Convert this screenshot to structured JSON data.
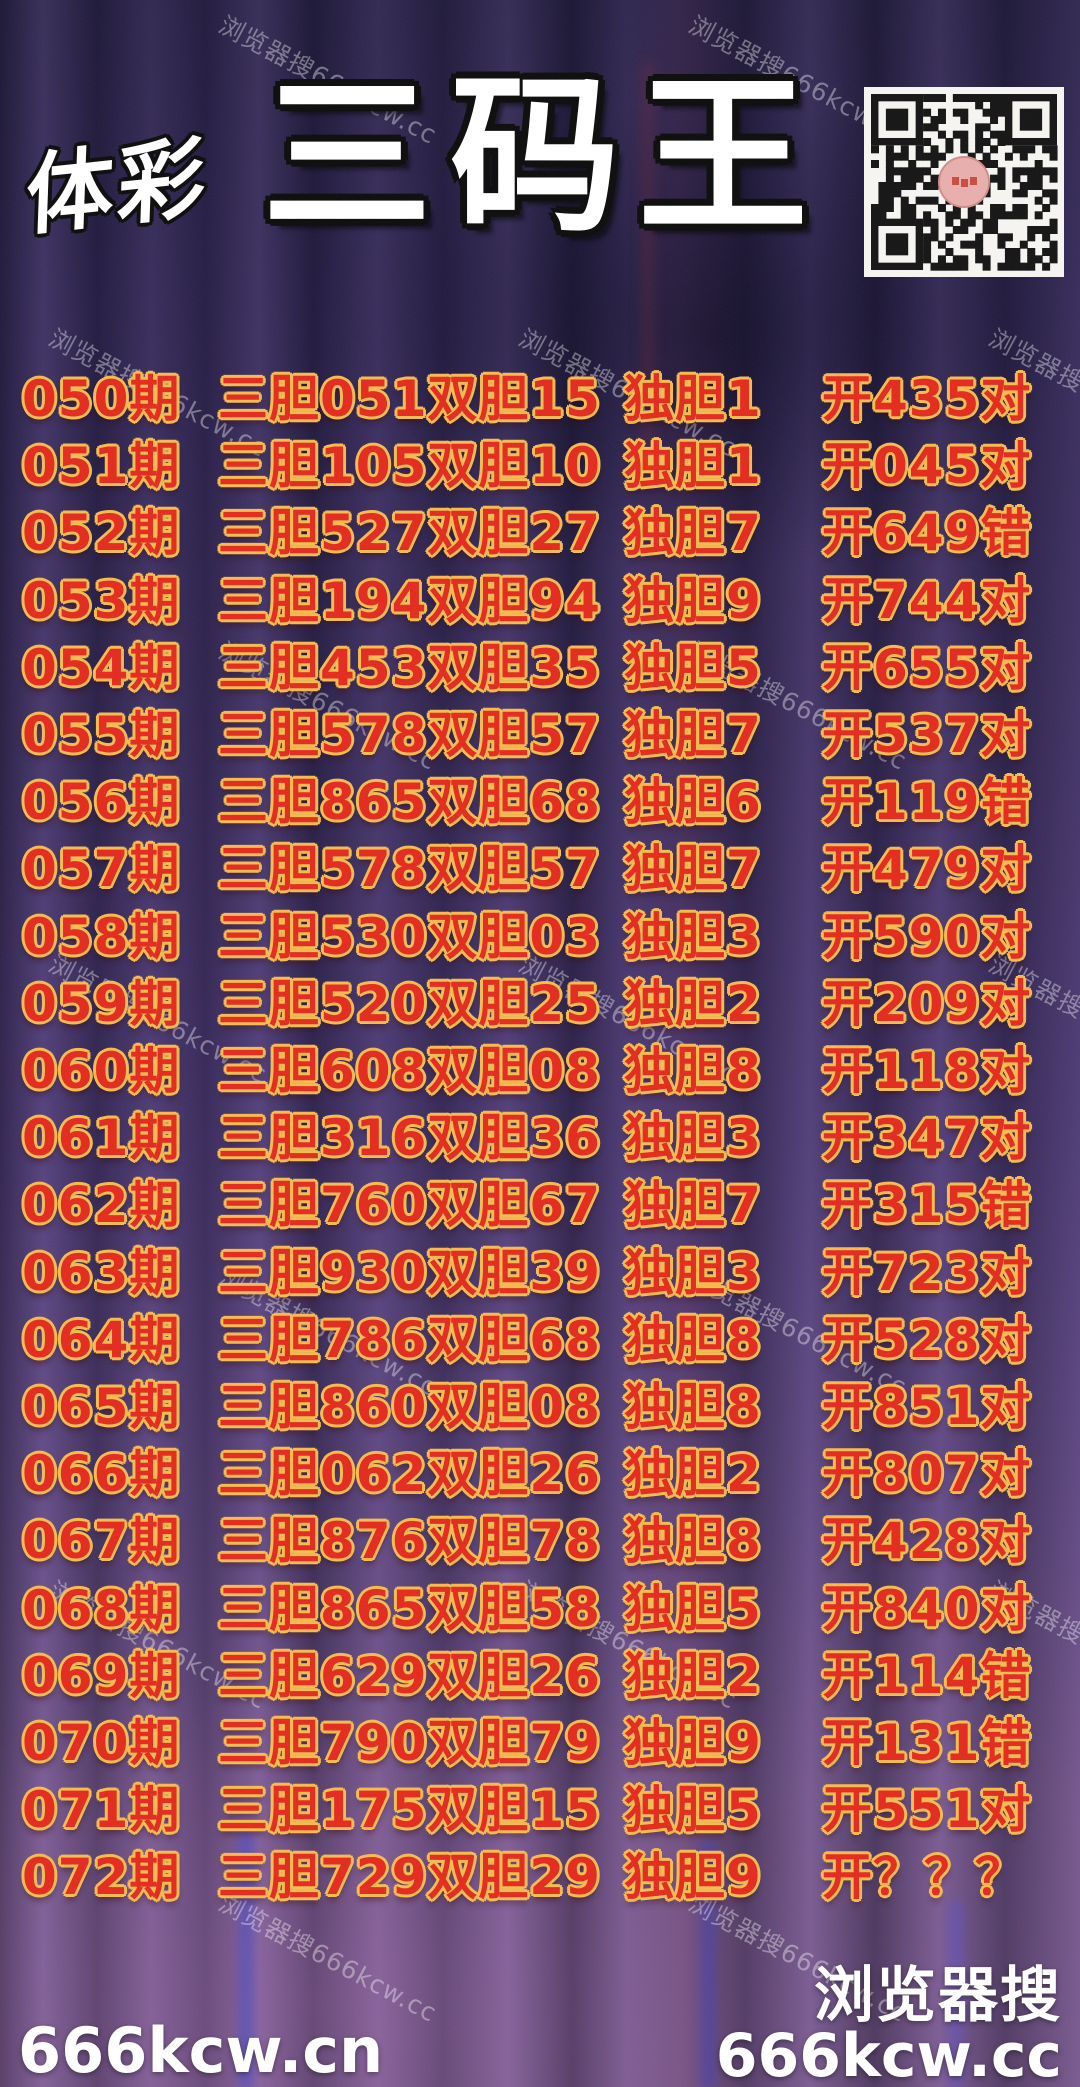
{
  "header": {
    "brand": "体彩",
    "title": "三码王"
  },
  "watermark": {
    "text": "浏览器搜666kcw.cc"
  },
  "table": {
    "rows": [
      {
        "period": "050期",
        "sandan": "三胆051双胆15",
        "dudan": "独胆1",
        "result": "开435对"
      },
      {
        "period": "051期",
        "sandan": "三胆105双胆10",
        "dudan": "独胆1",
        "result": "开045对"
      },
      {
        "period": "052期",
        "sandan": "三胆527双胆27",
        "dudan": "独胆7",
        "result": "开649错"
      },
      {
        "period": "053期",
        "sandan": "三胆194双胆94",
        "dudan": "独胆9",
        "result": "开744对"
      },
      {
        "period": "054期",
        "sandan": "三胆453双胆35",
        "dudan": "独胆5",
        "result": "开655对"
      },
      {
        "period": "055期",
        "sandan": "三胆578双胆57",
        "dudan": "独胆7",
        "result": "开537对"
      },
      {
        "period": "056期",
        "sandan": "三胆865双胆68",
        "dudan": "独胆6",
        "result": "开119错"
      },
      {
        "period": "057期",
        "sandan": "三胆578双胆57",
        "dudan": "独胆7",
        "result": "开479对"
      },
      {
        "period": "058期",
        "sandan": "三胆530双胆03",
        "dudan": "独胆3",
        "result": "开590对"
      },
      {
        "period": "059期",
        "sandan": "三胆520双胆25",
        "dudan": "独胆2",
        "result": "开209对"
      },
      {
        "period": "060期",
        "sandan": "三胆608双胆08",
        "dudan": "独胆8",
        "result": "开118对"
      },
      {
        "period": "061期",
        "sandan": "三胆316双胆36",
        "dudan": "独胆3",
        "result": "开347对"
      },
      {
        "period": "062期",
        "sandan": "三胆760双胆67",
        "dudan": "独胆7",
        "result": "开315错"
      },
      {
        "period": "063期",
        "sandan": "三胆930双胆39",
        "dudan": "独胆3",
        "result": "开723对"
      },
      {
        "period": "064期",
        "sandan": "三胆786双胆68",
        "dudan": "独胆8",
        "result": "开528对"
      },
      {
        "period": "065期",
        "sandan": "三胆860双胆08",
        "dudan": "独胆8",
        "result": "开851对"
      },
      {
        "period": "066期",
        "sandan": "三胆062双胆26",
        "dudan": "独胆2",
        "result": "开807对"
      },
      {
        "period": "067期",
        "sandan": "三胆876双胆78",
        "dudan": "独胆8",
        "result": "开428对"
      },
      {
        "period": "068期",
        "sandan": "三胆865双胆58",
        "dudan": "独胆5",
        "result": "开840对"
      },
      {
        "period": "069期",
        "sandan": "三胆629双胆26",
        "dudan": "独胆2",
        "result": "开114错"
      },
      {
        "period": "070期",
        "sandan": "三胆790双胆79",
        "dudan": "独胆9",
        "result": "开131错"
      },
      {
        "period": "071期",
        "sandan": "三胆175双胆15",
        "dudan": "独胆5",
        "result": "开551对"
      },
      {
        "period": "072期",
        "sandan": "三胆729双胆29",
        "dudan": "独胆9",
        "result": "开？？？"
      }
    ]
  },
  "footer": {
    "left": "666kcw.cn",
    "right_line1": "浏览器搜",
    "right_line2": "666kcw.cc"
  },
  "colors": {
    "row_text": "#e2291d",
    "row_outline": "#f3bb4f",
    "title_fill": "#ffffff",
    "title_outline": "#0b0b0b",
    "footer_text": "#ffffff",
    "watermark_color": "rgba(255,255,255,0.38)"
  }
}
